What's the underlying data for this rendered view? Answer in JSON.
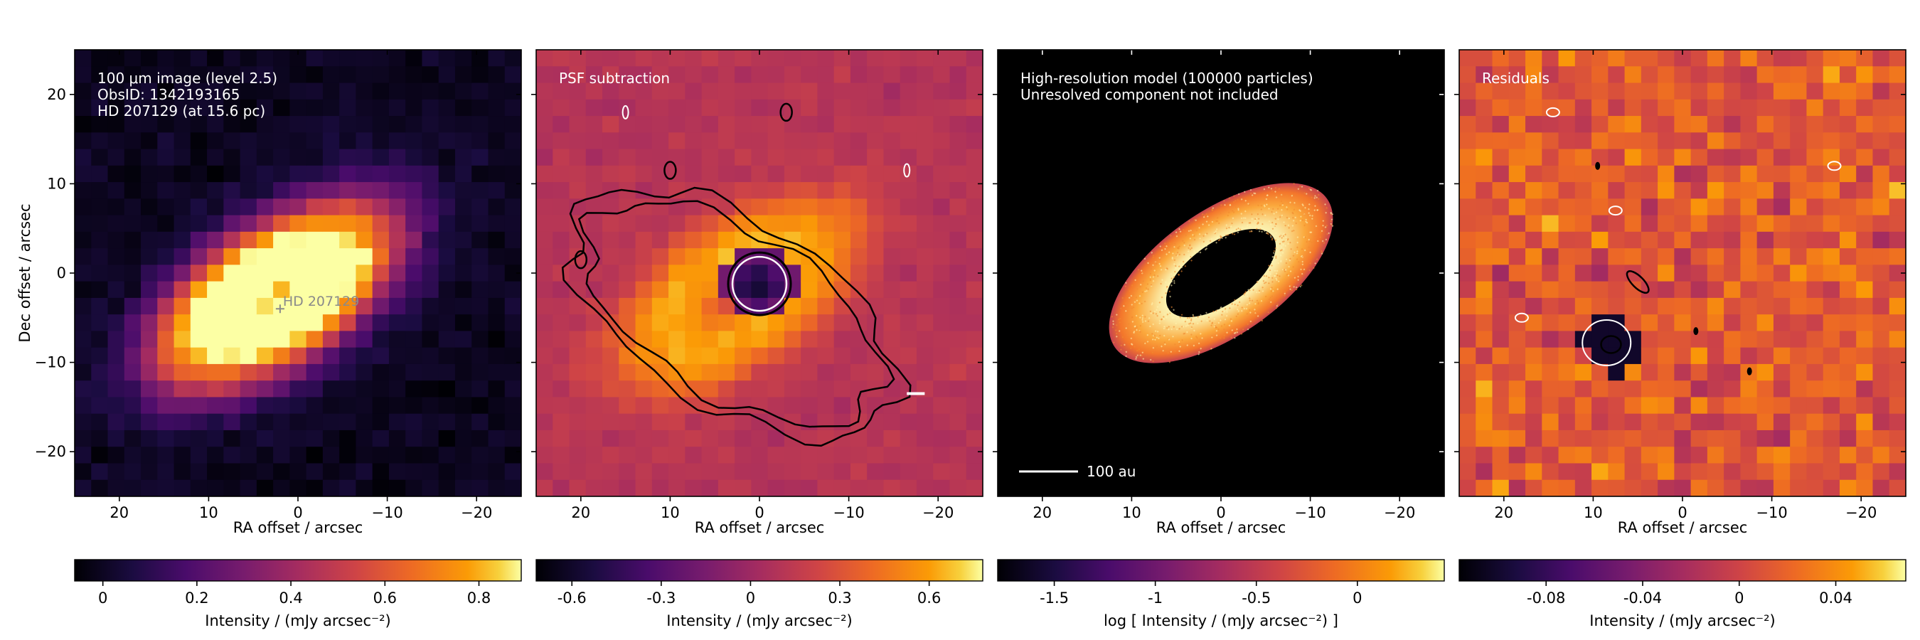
{
  "figure": {
    "ylabel": "Dec offset / arcsec",
    "xlabel": "RA offset / arcsec",
    "x_ticks": [
      20,
      10,
      0,
      -10,
      -20
    ],
    "y_ticks": [
      20,
      10,
      0,
      -10,
      -20
    ],
    "xlim": [
      25,
      -25
    ],
    "ylim": [
      -25,
      25
    ]
  },
  "panels": [
    {
      "title_lines": [
        "100 μm image (level 2.5)",
        "ObsID: 1342193165",
        "HD 207129 (at 15.6 pc)"
      ],
      "star_label": "HD 207129",
      "colorbar": {
        "label": "Intensity / (mJy arcsec⁻²)",
        "ticks": [
          "0",
          "0.2",
          "0.4",
          "0.6",
          "0.8"
        ],
        "tick_values": [
          0,
          0.2,
          0.4,
          0.6,
          0.8
        ],
        "range": [
          -0.06,
          0.89
        ]
      }
    },
    {
      "title_lines": [
        "PSF subtraction"
      ],
      "colorbar": {
        "label": "Intensity / (mJy arcsec⁻²)",
        "ticks": [
          "-0.6",
          "-0.3",
          "0",
          "0.3",
          "0.6"
        ],
        "tick_values": [
          -0.6,
          -0.3,
          0,
          0.3,
          0.6
        ],
        "range": [
          -0.72,
          0.78
        ]
      }
    },
    {
      "title_lines": [
        "High-resolution model (100000 particles)",
        "Unresolved component not included"
      ],
      "scalebar_label": "100 au",
      "colorbar": {
        "label": "log [ Intensity / (mJy arcsec⁻²) ]",
        "ticks": [
          "-1.5",
          "-1",
          "-0.5",
          "0"
        ],
        "tick_values": [
          -1.5,
          -1,
          -0.5,
          0
        ],
        "range": [
          -1.78,
          0.43
        ]
      }
    },
    {
      "title_lines": [
        "Residuals"
      ],
      "colorbar": {
        "label": "Intensity / (mJy arcsec⁻²)",
        "ticks": [
          "-0.08",
          "-0.04",
          "0",
          "0.04"
        ],
        "tick_values": [
          -0.08,
          -0.04,
          0,
          0.04
        ],
        "range": [
          -0.116,
          0.069
        ]
      }
    }
  ],
  "chart_data": [
    {
      "type": "heatmap",
      "image": "observed 100 μm map",
      "source_offset_arcsec": [
        2.0,
        -4.0
      ],
      "disk": {
        "center_arcsec": [
          2.5,
          -2.5
        ],
        "radius_arcsec": 12.5,
        "inclination_deg": 60,
        "position_angle_deg": 125
      }
    },
    {
      "type": "heatmap",
      "image": "PSF-subtracted map with contours",
      "contours": [
        {
          "level": "outer",
          "color": "black"
        },
        {
          "level": "inner",
          "color": "black"
        },
        {
          "level": "negative",
          "color": "white"
        }
      ]
    },
    {
      "type": "heatmap",
      "image": "model ring",
      "ring": {
        "inner_radius_au": 140,
        "outer_radius_au": 240
      }
    },
    {
      "type": "heatmap",
      "image": "residual map with contours"
    }
  ],
  "colors": {
    "colormap": "inferno",
    "background": "#ffffff",
    "text_on_image": "#ffffff"
  }
}
